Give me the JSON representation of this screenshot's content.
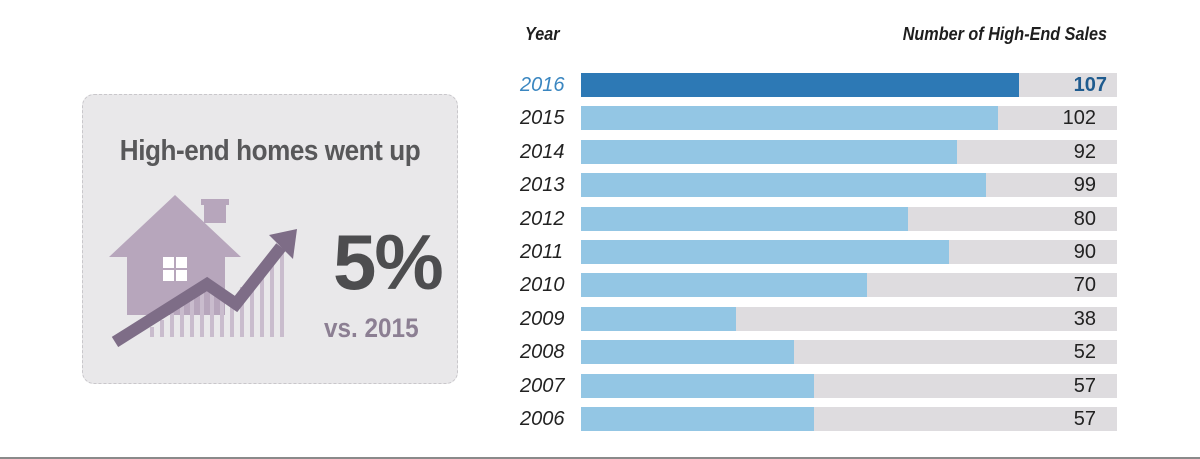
{
  "card": {
    "title": "High-end homes went up",
    "big_value": "5%",
    "comparison": "vs. 2015"
  },
  "chart_data": {
    "type": "bar",
    "orientation": "horizontal",
    "xlabel": "Year",
    "ylabel": "Number of High-End Sales",
    "categories": [
      "2016",
      "2015",
      "2014",
      "2013",
      "2012",
      "2011",
      "2010",
      "2009",
      "2008",
      "2007",
      "2006"
    ],
    "values": [
      107,
      102,
      92,
      99,
      80,
      90,
      70,
      38,
      52,
      57,
      57
    ],
    "highlight": "2016",
    "xlim": [
      0,
      131
    ]
  },
  "colors": {
    "bar": "#93c6e4",
    "bar_highlight": "#2d79b5",
    "track": "#dedcdf",
    "house": "#b7a6bc",
    "arrow": "#7e6d87"
  },
  "icons": {
    "house": "house-with-rising-arrow-icon"
  }
}
